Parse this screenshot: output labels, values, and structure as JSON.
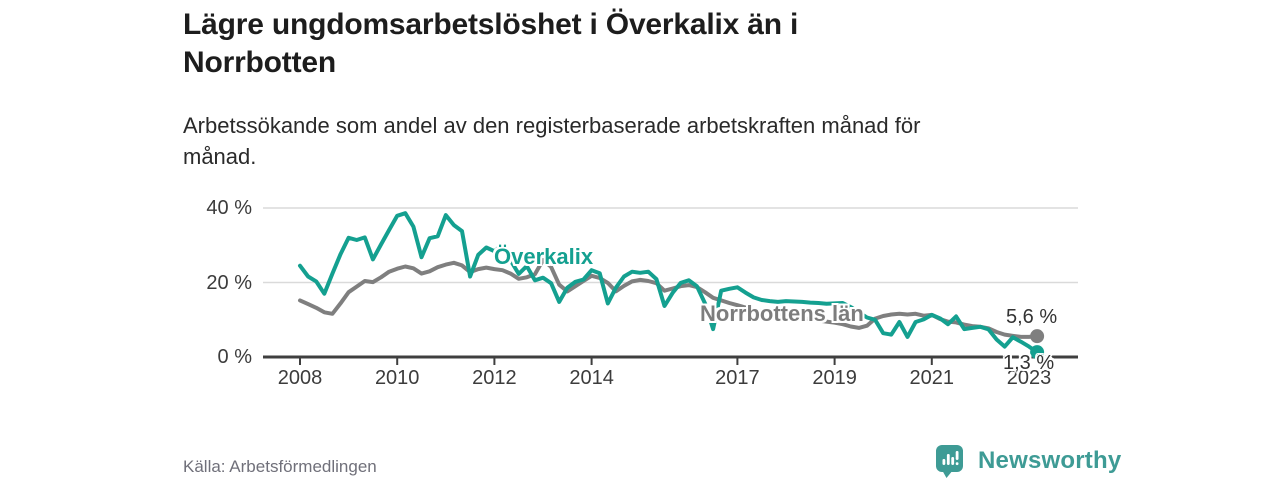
{
  "header": {
    "title": "Lägre ungdomsarbetslöshet i Överkalix än i\nNorrbotten",
    "subtitle": "Arbetssökande som andel av den registerbaserade arbetskraften månad för\nmånad."
  },
  "chart_data": {
    "type": "line",
    "unit": "%",
    "grid": "horizontal-only",
    "legend_position": "inline-labels-on-lines",
    "x_start": 2008,
    "x_step_years": 0.16667,
    "x_ticks": [
      2008,
      2010,
      2012,
      2014,
      2017,
      2019,
      2021,
      2023
    ],
    "y_ticks": [
      0,
      20,
      40
    ],
    "y_tick_labels": [
      "0 %",
      "20 %",
      "40 %"
    ],
    "ylim": [
      0,
      42
    ],
    "xlim": [
      2007.25,
      2023.95
    ],
    "series": [
      {
        "name": "Överkalix",
        "color": "#14a090",
        "end_label": "1,3 %",
        "end_value": 1.3,
        "values": [
          24.5,
          21.6,
          20.3,
          17.0,
          22.4,
          27.6,
          32.0,
          31.4,
          32.1,
          26.2,
          30.2,
          34.1,
          37.9,
          38.6,
          35.0,
          26.8,
          31.9,
          32.4,
          38.1,
          35.4,
          33.8,
          21.6,
          27.4,
          29.4,
          28.4,
          30.1,
          25.9,
          22.3,
          24.4,
          20.6,
          21.3,
          19.8,
          14.8,
          18.6,
          20.2,
          20.8,
          23.3,
          22.5,
          14.4,
          18.6,
          21.6,
          22.9,
          22.6,
          22.9,
          20.9,
          13.7,
          17.2,
          19.9,
          20.6,
          19.0,
          14.4,
          7.5,
          17.8,
          18.3,
          18.7,
          17.3,
          16.0,
          15.3,
          15.0,
          14.8,
          15.0,
          14.9,
          14.8,
          14.6,
          14.5,
          14.3,
          14.4,
          14.5,
          13.4,
          12.0,
          10.6,
          10.0,
          6.4,
          6.0,
          9.4,
          5.4,
          9.4,
          10.1,
          11.3,
          10.4,
          8.8,
          10.9,
          7.5,
          7.8,
          8.1,
          7.4,
          4.7,
          2.8,
          5.3,
          4.1,
          2.8,
          1.3
        ]
      },
      {
        "name": "Norrbottens län",
        "color": "#7f7f7f",
        "end_label": "5,6 %",
        "end_value": 5.6,
        "values": [
          15.2,
          14.2,
          13.2,
          12.0,
          11.6,
          14.4,
          17.4,
          18.9,
          20.4,
          20.1,
          21.4,
          22.9,
          23.7,
          24.3,
          23.8,
          22.4,
          23.0,
          24.1,
          24.8,
          25.3,
          24.6,
          22.8,
          23.6,
          24.0,
          23.6,
          23.3,
          22.4,
          21.0,
          21.4,
          22.2,
          26.0,
          24.2,
          19.4,
          17.6,
          19.0,
          20.4,
          21.8,
          21.2,
          19.9,
          17.6,
          19.1,
          20.3,
          20.7,
          20.4,
          19.8,
          17.8,
          18.4,
          19.0,
          19.3,
          18.8,
          17.4,
          15.9,
          15.2,
          14.5,
          13.9,
          13.3,
          12.8,
          12.3,
          12.0,
          11.6,
          11.2,
          10.8,
          10.5,
          10.1,
          9.8,
          9.5,
          9.2,
          8.8,
          8.2,
          7.8,
          8.4,
          10.3,
          11.0,
          11.4,
          11.6,
          11.4,
          11.6,
          11.1,
          11.3,
          10.2,
          9.5,
          9.3,
          8.7,
          8.3,
          8.1,
          7.7,
          6.7,
          6.0,
          5.7,
          5.4,
          5.4,
          5.6
        ]
      }
    ]
  },
  "footer": {
    "source": "Källa: Arbetsförmedlingen",
    "brand": "Newsworthy"
  },
  "colors": {
    "accent_teal": "#14a090",
    "brand_teal": "#3e9b95",
    "line_gray": "#7f7f7f",
    "gridline": "#dadada",
    "axis": "#3f3f3f",
    "text_dark": "#1d1d1d",
    "text_axis": "#3c3c3c",
    "text_source": "#70707a"
  }
}
